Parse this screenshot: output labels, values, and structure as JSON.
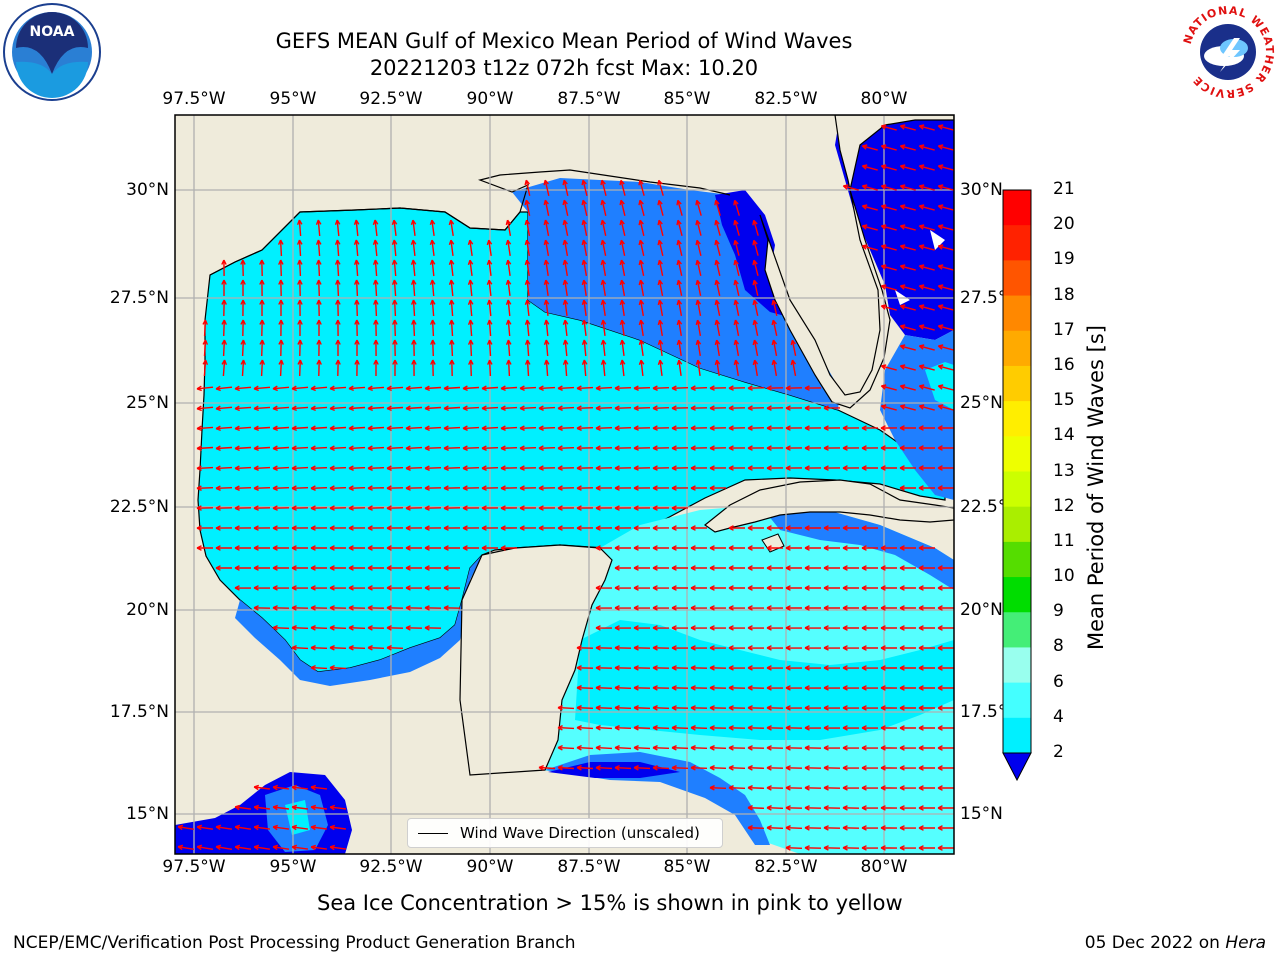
{
  "header": {
    "title_line1": "GEFS MEAN Gulf of Mexico Mean Period of Wind Waves",
    "title_line2": "20221203 t12z 072h fcst   Max: 10.20"
  },
  "logos": {
    "left": "NOAA",
    "right_ring_text": "NATIONAL WEATHER SERVICE"
  },
  "axes": {
    "lon_ticks": [
      "97.5°W",
      "95°W",
      "92.5°W",
      "90°W",
      "87.5°W",
      "85°W",
      "82.5°W",
      "80°W"
    ],
    "lat_ticks_left": [
      "30°N",
      "27.5°N",
      "25°N",
      "22.5°N",
      "20°N",
      "17.5°N",
      "15°N"
    ],
    "lat_ticks_right": [
      "30°N",
      "27.5°",
      "25°N",
      "22.5°",
      "20°N",
      "17.5°",
      "15°N"
    ]
  },
  "legend": {
    "label": "Wind Wave Direction (unscaled)"
  },
  "colorbar": {
    "label": "Mean Period of Wind Waves [s]",
    "ticks": [
      "21",
      "20",
      "19",
      "18",
      "17",
      "16",
      "15",
      "14",
      "13",
      "12",
      "11",
      "10",
      "9",
      "8",
      "6",
      "4",
      "2"
    ],
    "colors": [
      "#ff0000",
      "#ff2200",
      "#ff5500",
      "#ff8800",
      "#ffaa00",
      "#ffcc00",
      "#ffee00",
      "#eeff00",
      "#ccff00",
      "#aaee00",
      "#55dd00",
      "#00dd00",
      "#44ee77",
      "#99ffee",
      "#44ffff",
      "#00f0ff",
      "#0088ff",
      "#0000ee"
    ]
  },
  "caption": "Sea Ice Concentration > 15% is shown in pink to yellow",
  "footer": {
    "left": "NCEP/EMC/Verification Post Processing Product Generation Branch",
    "right_date": "05 Dec 2022 on ",
    "right_host": "Hera"
  },
  "colors": {
    "land": "#efebdb",
    "cyan": "#00f0ff",
    "light_cyan": "#55ffff",
    "blue": "#1f7fff",
    "dark_blue": "#0000ee",
    "arrow": "#ff0000",
    "grid": "#b0b0b0"
  }
}
